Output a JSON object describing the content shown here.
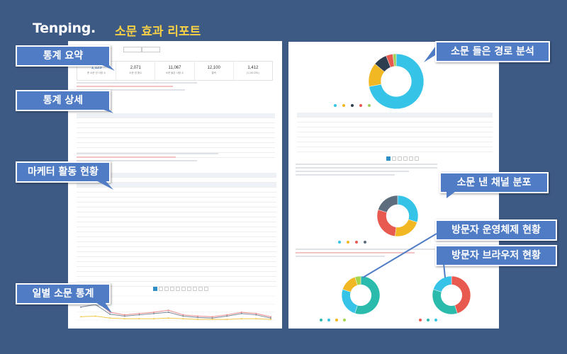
{
  "header": {
    "logo": "Tenping.",
    "title": "소문 효과 리포트"
  },
  "callouts": {
    "summary": "통계 요약",
    "detail": "통계 상세",
    "marketer": "마케터 활동 현황",
    "daily": "일별 소문 통계",
    "route": "소문 들은 경로 분석",
    "channel": "소문 낸 채널 분포",
    "os": "방문자 운영체제 현황",
    "browser": "방문자 브라우저 현황"
  },
  "stats": [
    {
      "value": "1,123",
      "label": "총 소문 낸 사람 수"
    },
    {
      "value": "2,071",
      "label": "소문 낸 횟수"
    },
    {
      "value": "11,067",
      "label": "소문 들은 사람 수"
    },
    {
      "value": "12,100",
      "label": "클릭"
    },
    {
      "value": "1,412",
      "label": "(1,161/251)"
    }
  ],
  "chart_data": [
    {
      "type": "pie",
      "name": "route",
      "values": [
        72,
        14,
        8,
        4,
        2
      ],
      "colors": [
        "#35c4e8",
        "#f1b823",
        "#2d3e50",
        "#e85a4f",
        "#9fd15a"
      ]
    },
    {
      "type": "pie",
      "name": "channel",
      "values": [
        30,
        22,
        28,
        20
      ],
      "colors": [
        "#35c4e8",
        "#f1b823",
        "#e85a4f",
        "#5d6d7e"
      ]
    },
    {
      "type": "pie",
      "name": "os",
      "values": [
        55,
        25,
        15,
        5
      ],
      "colors": [
        "#2bbbad",
        "#35c4e8",
        "#f1b823",
        "#a5d64c"
      ]
    },
    {
      "type": "pie",
      "name": "browser",
      "values": [
        45,
        35,
        20
      ],
      "colors": [
        "#e85a4f",
        "#2bbbad",
        "#35c4e8"
      ]
    },
    {
      "type": "line",
      "name": "daily",
      "series": [
        {
          "values": [
            25,
            30,
            12,
            8,
            10,
            12,
            15,
            8,
            6,
            5,
            8,
            12,
            10,
            5
          ],
          "color": "#e98a8a"
        },
        {
          "values": [
            20,
            24,
            9,
            6,
            8,
            10,
            12,
            6,
            4,
            3,
            6,
            10,
            8,
            3
          ],
          "color": "#7a8899"
        },
        {
          "values": [
            5,
            6,
            3,
            2,
            2,
            2,
            3,
            2,
            1,
            1,
            1,
            2,
            2,
            1
          ],
          "color": "#f1c84b"
        }
      ],
      "ylim": [
        0,
        35
      ]
    }
  ],
  "colors": {
    "background": "#3d5a85",
    "callout": "#4f7cc4",
    "title": "#f7d046"
  }
}
